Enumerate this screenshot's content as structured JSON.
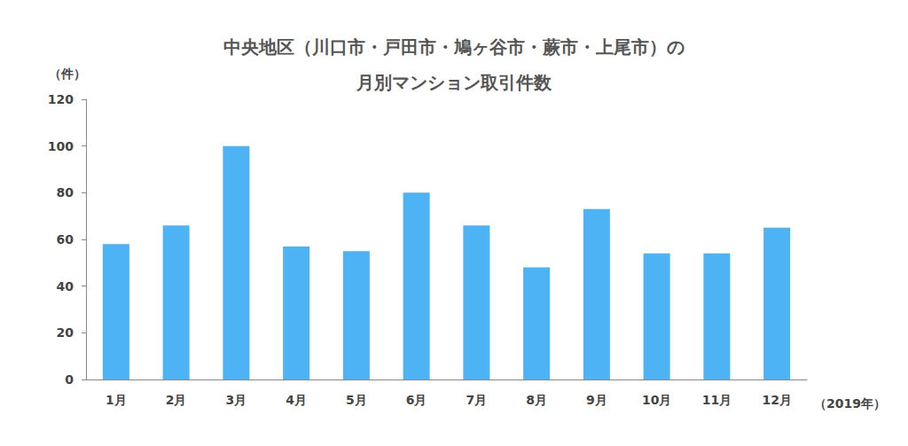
{
  "chart_data": {
    "type": "bar",
    "title": "中央地区（川口市・戸田市・鳩ヶ谷市・蕨市・上尾市）の\n月別マンション取引件数",
    "ylabel": "（件）",
    "xlabel": "（2019年）",
    "categories": [
      "1月",
      "2月",
      "3月",
      "4月",
      "5月",
      "6月",
      "7月",
      "8月",
      "9月",
      "10月",
      "11月",
      "12月"
    ],
    "values": [
      58,
      66,
      100,
      57,
      55,
      80,
      66,
      48,
      73,
      54,
      54,
      65
    ],
    "color": "#4db3f5",
    "ylim": [
      0,
      120
    ],
    "yticks": [
      0,
      20,
      40,
      60,
      80,
      100,
      120
    ],
    "grid": false
  }
}
